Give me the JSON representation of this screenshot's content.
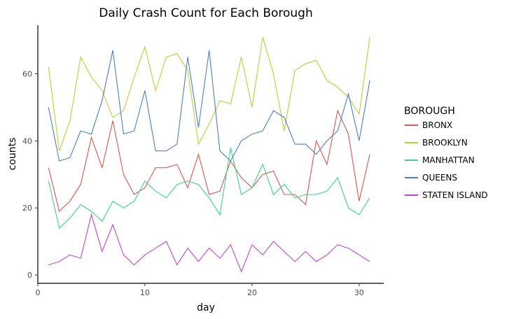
{
  "chart_data": {
    "type": "line",
    "title": "Daily Crash Count for Each Borough",
    "xlabel": "day",
    "ylabel": "counts",
    "xlim": [
      0,
      32.3
    ],
    "ylim": [
      -2.5,
      74.5
    ],
    "x_ticks": [
      0,
      10,
      20,
      30
    ],
    "y_ticks": [
      0,
      20,
      40,
      60
    ],
    "x_tick_labels": [
      "0",
      "10",
      "20",
      "30"
    ],
    "y_tick_labels": [
      "0",
      "20",
      "40",
      "60"
    ],
    "grid": false,
    "legend": {
      "title": "BOROUGH",
      "position": "right"
    },
    "x": [
      1,
      2,
      3,
      4,
      5,
      6,
      7,
      8,
      9,
      10,
      11,
      12,
      13,
      14,
      15,
      16,
      17,
      18,
      19,
      20,
      21,
      22,
      23,
      24,
      25,
      26,
      27,
      28,
      29,
      30,
      31
    ],
    "series": [
      {
        "name": "BRONX",
        "color": "#e2544f",
        "values": [
          32,
          19,
          22,
          27,
          41,
          32,
          46,
          30,
          24,
          26,
          32,
          32,
          33,
          26,
          36,
          24,
          25,
          34,
          29,
          26,
          30,
          31,
          24,
          24,
          21,
          40,
          33,
          49,
          42,
          22,
          36
        ]
      },
      {
        "name": "BROOKLYN",
        "color": "#b5d338",
        "values": [
          62,
          37,
          46,
          65,
          59,
          55,
          47,
          49,
          59,
          68,
          55,
          65,
          66,
          61,
          39,
          45,
          52,
          51,
          65,
          50,
          71,
          60,
          43,
          61,
          63,
          64,
          58,
          56,
          53,
          48,
          71
        ]
      },
      {
        "name": "MANHATTAN",
        "color": "#3dd68c",
        "values": [
          28,
          14,
          17,
          21,
          19,
          16,
          22,
          20,
          22,
          28,
          25,
          23,
          27,
          28,
          27,
          23,
          18,
          38,
          24,
          26,
          33,
          24,
          27,
          23,
          24,
          24,
          25,
          29,
          20,
          18,
          23
        ]
      },
      {
        "name": "QUEENS",
        "color": "#4a7fd2",
        "values": [
          50,
          34,
          35,
          43,
          42,
          52,
          67,
          42,
          43,
          55,
          37,
          37,
          39,
          65,
          44,
          67,
          37,
          34,
          40,
          42,
          43,
          49,
          47,
          39,
          39,
          36,
          40,
          43,
          54,
          40,
          58
        ]
      },
      {
        "name": "STATEN ISLAND",
        "color": "#c645d8",
        "values": [
          3,
          4,
          6,
          5,
          18,
          7,
          15,
          6,
          3,
          6,
          8,
          10,
          3,
          8,
          4,
          8,
          5,
          9,
          1,
          9,
          6,
          10,
          7,
          4,
          7,
          4,
          6,
          9,
          8,
          6,
          4
        ]
      }
    ]
  }
}
